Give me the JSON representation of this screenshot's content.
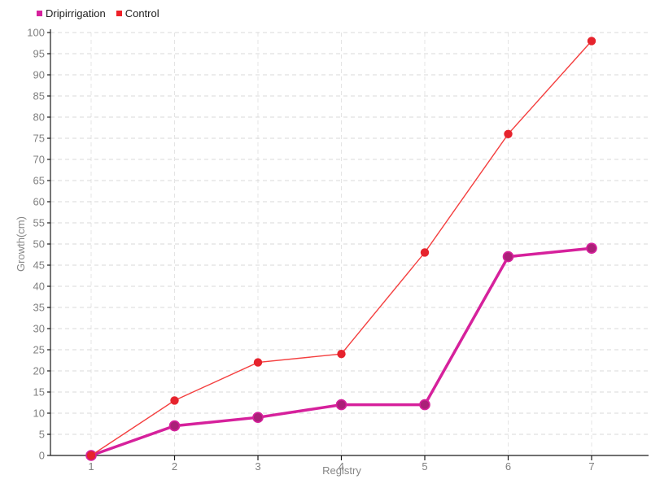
{
  "chart_data": {
    "type": "line",
    "x": [
      1,
      2,
      3,
      4,
      5,
      6,
      7
    ],
    "series": [
      {
        "name": "Dripirrigation",
        "values": [
          0,
          7,
          9,
          12,
          12,
          47,
          49
        ],
        "color": "#d6219c",
        "marker_fill": "#aa2078",
        "swatch_color": "#d6219c"
      },
      {
        "name": "Control",
        "values": [
          0,
          13,
          22,
          24,
          48,
          76,
          98
        ],
        "color": "#f43f3f",
        "marker_fill": "#e6232d",
        "swatch_color": "#ee2028"
      }
    ],
    "xlabel": "Registry",
    "ylabel": "Growth(cm)",
    "ylim": [
      0,
      100
    ],
    "ytick_step": 5,
    "xticks": [
      "1",
      "2",
      "3",
      "4",
      "5",
      "6",
      "7"
    ],
    "grid": true,
    "legend_position": "top-left",
    "colors": {
      "axis": "#1a1a1a",
      "grid_horizontal": "#d9d9d9",
      "grid_vertical": "#e4e4e4",
      "tick_label": "#808080"
    }
  }
}
